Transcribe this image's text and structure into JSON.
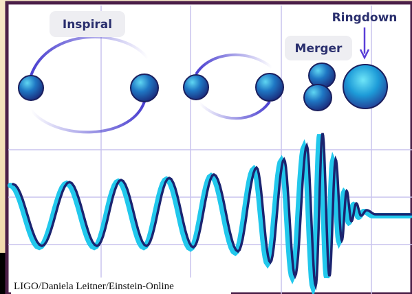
{
  "labels": {
    "inspiral": "Inspiral",
    "merger": "Merger",
    "ringdown": "Ringdown"
  },
  "credit": "LIGO/Daniela Leitner/Einstein-Online"
}
